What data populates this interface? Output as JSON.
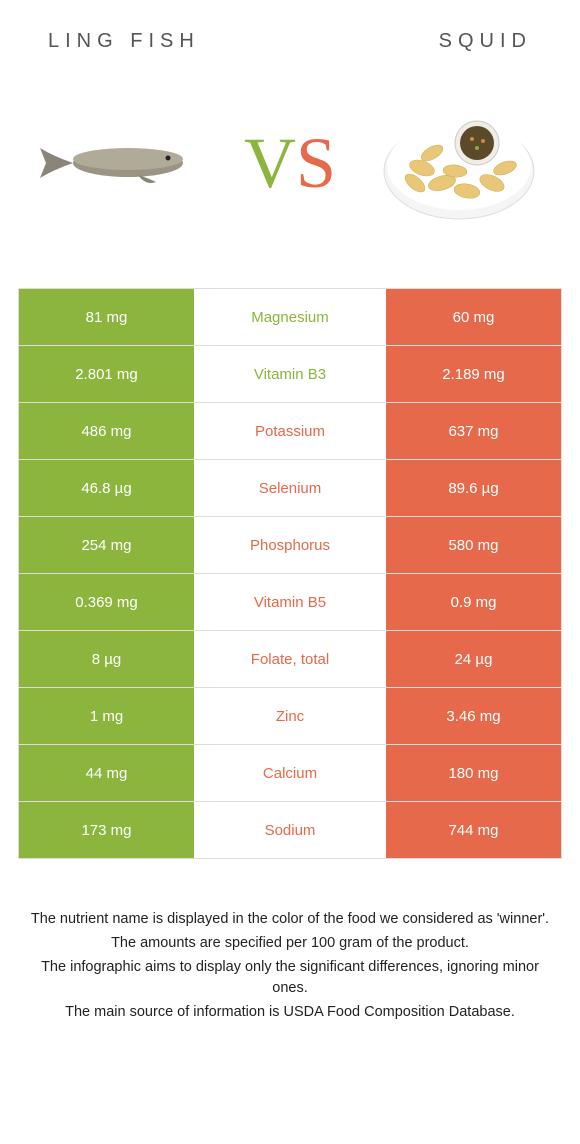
{
  "colors": {
    "left": "#8bb53c",
    "right": "#e5694a",
    "vs_v": "#8bb53c",
    "vs_s": "#e5694a",
    "footer_text": "#222222"
  },
  "header": {
    "left_title": "LING FISH",
    "right_title": "SQUID"
  },
  "vs": {
    "v": "V",
    "s": "S"
  },
  "rows": [
    {
      "left": "81 mg",
      "label": "Magnesium",
      "right": "60 mg",
      "winner": "left"
    },
    {
      "left": "2.801 mg",
      "label": "Vitamin B3",
      "right": "2.189 mg",
      "winner": "left"
    },
    {
      "left": "486 mg",
      "label": "Potassium",
      "right": "637 mg",
      "winner": "right"
    },
    {
      "left": "46.8 µg",
      "label": "Selenium",
      "right": "89.6 µg",
      "winner": "right"
    },
    {
      "left": "254 mg",
      "label": "Phosphorus",
      "right": "580 mg",
      "winner": "right"
    },
    {
      "left": "0.369 mg",
      "label": "Vitamin B5",
      "right": "0.9 mg",
      "winner": "right"
    },
    {
      "left": "8 µg",
      "label": "Folate, total",
      "right": "24 µg",
      "winner": "right"
    },
    {
      "left": "1 mg",
      "label": "Zinc",
      "right": "3.46 mg",
      "winner": "right"
    },
    {
      "left": "44 mg",
      "label": "Calcium",
      "right": "180 mg",
      "winner": "right"
    },
    {
      "left": "173 mg",
      "label": "Sodium",
      "right": "744 mg",
      "winner": "right"
    }
  ],
  "footer": {
    "line1": "The nutrient name is displayed in the color of the food we considered as 'winner'.",
    "line2": "The amounts are specified per 100 gram of the product.",
    "line3": "The infographic aims to display only the significant differences, ignoring minor ones.",
    "line4": "The main source of information is USDA Food Composition Database."
  }
}
